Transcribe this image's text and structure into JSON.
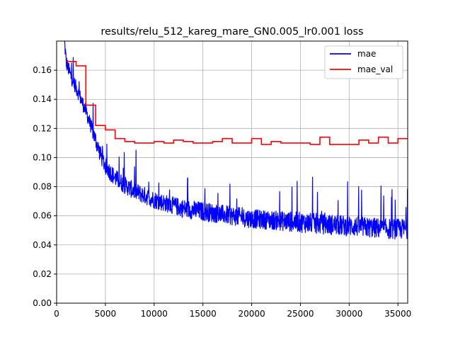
{
  "chart_data": {
    "type": "line",
    "title": "results/relu_512_kareg_mare_GN0.005_lr0.001 loss",
    "xlabel": "",
    "ylabel": "",
    "xlim": [
      0,
      36000
    ],
    "ylim": [
      0,
      0.18
    ],
    "x_ticks": [
      0,
      5000,
      10000,
      15000,
      20000,
      25000,
      30000,
      35000
    ],
    "x_tick_labels": [
      "0",
      "5000",
      "10000",
      "15000",
      "20000",
      "25000",
      "30000",
      "35000"
    ],
    "y_ticks": [
      0.0,
      0.02,
      0.04,
      0.06,
      0.08,
      0.1,
      0.12,
      0.14,
      0.16
    ],
    "y_tick_labels": [
      "0.00",
      "0.02",
      "0.04",
      "0.06",
      "0.08",
      "0.10",
      "0.12",
      "0.14",
      "0.16"
    ],
    "grid": true,
    "legend_position": "top-right",
    "series": [
      {
        "name": "mae",
        "color": "#0000ff",
        "style": "noisy",
        "x": [
          800,
          1000,
          1500,
          2000,
          2500,
          3000,
          3500,
          4000,
          4500,
          5000,
          6000,
          7000,
          8000,
          9000,
          10000,
          11000,
          12000,
          13000,
          14000,
          15000,
          16000,
          17000,
          18000,
          19000,
          20000,
          22000,
          24000,
          26000,
          28000,
          30000,
          32000,
          34000,
          36000
        ],
        "y": [
          0.18,
          0.165,
          0.155,
          0.148,
          0.14,
          0.132,
          0.122,
          0.112,
          0.102,
          0.094,
          0.086,
          0.081,
          0.077,
          0.074,
          0.071,
          0.069,
          0.067,
          0.065,
          0.064,
          0.063,
          0.062,
          0.061,
          0.06,
          0.059,
          0.058,
          0.057,
          0.056,
          0.055,
          0.054,
          0.053,
          0.052,
          0.051,
          0.051
        ],
        "noise_band": [
          0.01,
          0.01,
          0.01,
          0.01,
          0.01,
          0.01,
          0.01,
          0.012,
          0.012,
          0.012,
          0.012,
          0.012,
          0.012,
          0.012,
          0.012,
          0.012,
          0.012,
          0.013,
          0.013,
          0.013,
          0.013,
          0.013,
          0.013,
          0.013,
          0.013,
          0.013,
          0.014,
          0.014,
          0.014,
          0.014,
          0.014,
          0.014,
          0.014
        ]
      },
      {
        "name": "mae_val",
        "color": "#ff0000",
        "style": "step",
        "x": [
          1000,
          2000,
          3000,
          4000,
          5000,
          6000,
          7000,
          8000,
          9000,
          10000,
          11000,
          12000,
          13000,
          14000,
          15000,
          16000,
          17000,
          18000,
          19000,
          20000,
          21000,
          22000,
          23000,
          24000,
          25000,
          26000,
          27000,
          28000,
          29000,
          30000,
          31000,
          32000,
          33000,
          34000,
          35000,
          36000
        ],
        "y": [
          0.166,
          0.163,
          0.136,
          0.122,
          0.119,
          0.113,
          0.111,
          0.11,
          0.11,
          0.111,
          0.11,
          0.112,
          0.111,
          0.11,
          0.11,
          0.111,
          0.113,
          0.11,
          0.11,
          0.113,
          0.109,
          0.111,
          0.11,
          0.11,
          0.11,
          0.109,
          0.114,
          0.109,
          0.109,
          0.109,
          0.112,
          0.11,
          0.114,
          0.11,
          0.113,
          0.113
        ]
      }
    ]
  }
}
